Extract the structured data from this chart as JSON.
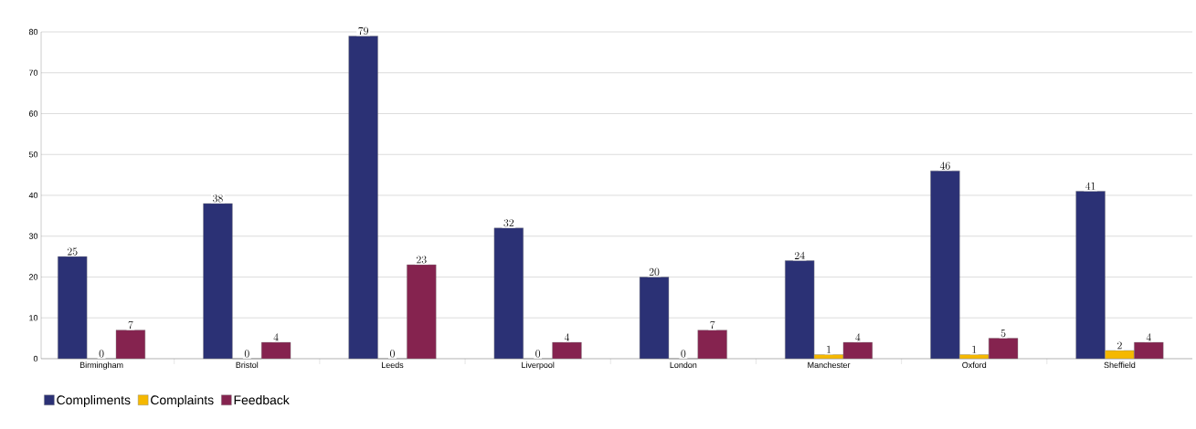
{
  "chart_data": {
    "type": "bar",
    "categories": [
      "Birmingham",
      "Bristol",
      "Leeds",
      "Liverpool",
      "London",
      "Manchester",
      "Oxford",
      "Sheffield"
    ],
    "series": [
      {
        "name": "Compliments",
        "color": "#2b3175",
        "values": [
          25,
          38,
          79,
          32,
          20,
          24,
          46,
          41
        ]
      },
      {
        "name": "Complaints",
        "color": "#f5b800",
        "values": [
          0,
          0,
          0,
          0,
          0,
          1,
          1,
          2
        ]
      },
      {
        "name": "Feedback",
        "color": "#85234f",
        "values": [
          7,
          4,
          23,
          4,
          7,
          4,
          5,
          4
        ]
      }
    ],
    "ylim": [
      0,
      80
    ],
    "yticks": [
      0,
      10,
      20,
      30,
      40,
      50,
      60,
      70,
      80
    ],
    "grid": "y",
    "legend": "bottom left",
    "data_labels": true
  }
}
